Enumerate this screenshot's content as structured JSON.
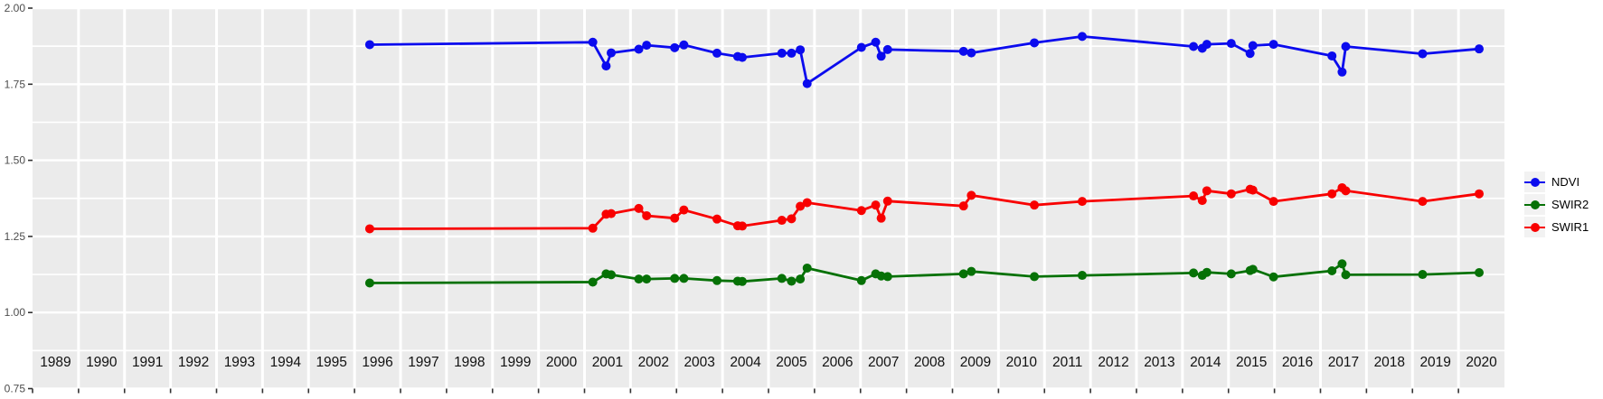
{
  "chart_data": {
    "type": "line",
    "title": "",
    "xlabel": "",
    "ylabel": "",
    "xlim": [
      1989,
      2021
    ],
    "ylim": [
      0.75,
      2.0
    ],
    "grid": true,
    "legend_position": "right",
    "panel_bg": "#EBEBEB",
    "grid_color": "#FFFFFF",
    "tick_color": "#333333",
    "y_label_color": "#4d4d4d",
    "x_label_color": "#111111",
    "x_ticks": [
      "1989",
      "1990",
      "1991",
      "1992",
      "1993",
      "1994",
      "1995",
      "1996",
      "1997",
      "1998",
      "1999",
      "2000",
      "2001",
      "2002",
      "2003",
      "2004",
      "2005",
      "2006",
      "2007",
      "2008",
      "2009",
      "2010",
      "2011",
      "2012",
      "2013",
      "2014",
      "2015",
      "2016",
      "2017",
      "2018",
      "2019",
      "2020"
    ],
    "y_ticks": [
      {
        "label": "2.00",
        "value": 2.0
      },
      {
        "label": "1.75",
        "value": 1.75
      },
      {
        "label": "1.50",
        "value": 1.5
      },
      {
        "label": "1.25",
        "value": 1.25
      },
      {
        "label": "1.00",
        "value": 1.0
      },
      {
        "label": "0.75",
        "value": 0.75
      }
    ],
    "y_minor_breaks": [
      1.875,
      1.625,
      1.375,
      1.125,
      0.875
    ],
    "x": [
      1996.33,
      2001.18,
      2001.47,
      2001.58,
      2002.18,
      2002.35,
      2002.96,
      2003.16,
      2003.88,
      2004.33,
      2004.43,
      2005.29,
      2005.5,
      2005.69,
      2005.84,
      2007.02,
      2007.33,
      2007.45,
      2007.59,
      2009.24,
      2009.41,
      2010.78,
      2011.82,
      2014.24,
      2014.43,
      2014.53,
      2015.06,
      2015.47,
      2015.53,
      2015.98,
      2017.25,
      2017.47,
      2017.55,
      2019.22,
      2020.45
    ],
    "series": [
      {
        "name": "NDVI",
        "color": "#0b0bee",
        "values": [
          1.88,
          1.888,
          1.81,
          1.853,
          1.865,
          1.878,
          1.87,
          1.879,
          1.852,
          1.841,
          1.838,
          1.852,
          1.852,
          1.863,
          1.752,
          1.871,
          1.888,
          1.842,
          1.864,
          1.858,
          1.853,
          1.886,
          1.907,
          1.874,
          1.868,
          1.881,
          1.884,
          1.851,
          1.877,
          1.881,
          1.843,
          1.79,
          1.874,
          1.85,
          1.866
        ]
      },
      {
        "name": "SWIR2",
        "color": "#067106",
        "values": [
          1.097,
          1.1,
          1.127,
          1.124,
          1.11,
          1.11,
          1.112,
          1.112,
          1.105,
          1.103,
          1.102,
          1.112,
          1.103,
          1.11,
          1.146,
          1.105,
          1.127,
          1.12,
          1.118,
          1.127,
          1.135,
          1.118,
          1.122,
          1.13,
          1.122,
          1.132,
          1.127,
          1.138,
          1.142,
          1.117,
          1.137,
          1.16,
          1.124,
          1.125,
          1.131
        ]
      },
      {
        "name": "SWIR1",
        "color": "#f80000",
        "values": [
          1.275,
          1.277,
          1.323,
          1.325,
          1.342,
          1.318,
          1.31,
          1.337,
          1.307,
          1.285,
          1.284,
          1.303,
          1.308,
          1.349,
          1.361,
          1.335,
          1.353,
          1.31,
          1.366,
          1.35,
          1.385,
          1.353,
          1.365,
          1.383,
          1.368,
          1.4,
          1.39,
          1.405,
          1.402,
          1.365,
          1.39,
          1.41,
          1.4,
          1.365,
          1.39
        ]
      }
    ]
  },
  "legend": {
    "key_bg": "#f2f2f2",
    "items": [
      {
        "label": "NDVI",
        "color": "#0b0bee"
      },
      {
        "label": "SWIR2",
        "color": "#067106"
      },
      {
        "label": "SWIR1",
        "color": "#f80000"
      }
    ]
  }
}
